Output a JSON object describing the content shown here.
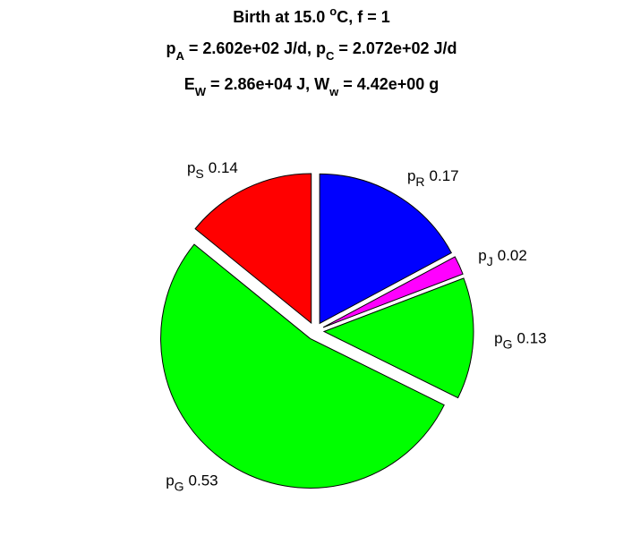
{
  "chart_data": {
    "type": "pie",
    "title": [
      [
        {
          "text": "Birth at 15.0 "
        },
        {
          "text": "o",
          "script": "sup"
        },
        {
          "text": "C, f = 1"
        }
      ],
      [
        {
          "text": "p"
        },
        {
          "text": "A",
          "script": "sub"
        },
        {
          "text": " = 2.602e+02 J/d, p"
        },
        {
          "text": "C",
          "script": "sub"
        },
        {
          "text": " = 2.072e+02 J/d"
        }
      ],
      [
        {
          "text": "E"
        },
        {
          "text": "W",
          "script": "sub"
        },
        {
          "text": " = 2.86e+04 J, W"
        },
        {
          "text": "w",
          "script": "sub"
        },
        {
          "text": " = 4.42e+00 g"
        }
      ]
    ],
    "categories": [
      {
        "text": "p",
        "subscript": "R"
      },
      {
        "text": "p",
        "subscript": "J"
      },
      {
        "text": "p",
        "subscript": "G"
      },
      {
        "text": "p",
        "subscript": "G"
      },
      {
        "text": "p",
        "subscript": "S"
      }
    ],
    "values": [
      0.17,
      0.02,
      0.13,
      0.53,
      0.14
    ],
    "colors": [
      "#0000ff",
      "#ff00ff",
      "#00ff00",
      "#00ff00",
      "#ff0000"
    ],
    "explode": true
  }
}
